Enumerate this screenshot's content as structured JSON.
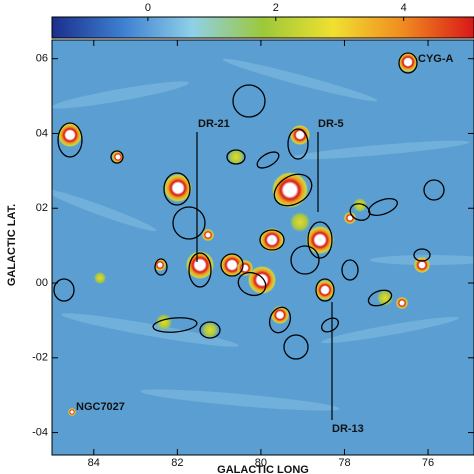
{
  "chart_data": {
    "type": "map",
    "xlabel": "GALACTIC LONG",
    "ylabel": "GALACTIC LAT.",
    "xlim": [
      85,
      74.9
    ],
    "xticks": [
      84,
      82,
      80,
      78,
      76
    ],
    "ylim": [
      -0.46,
      0.65
    ],
    "yticks": [
      {
        "value": 0.6,
        "label": "06"
      },
      {
        "value": 0.4,
        "label": "04"
      },
      {
        "value": 0.2,
        "label": "02"
      },
      {
        "value": 0.0,
        "label": "00"
      },
      {
        "value": -0.2,
        "label": "-02"
      },
      {
        "value": -0.4,
        "label": "-04"
      }
    ],
    "colorbar": {
      "lim": [
        -1.5,
        5.1
      ],
      "ticks": [
        0,
        2,
        4
      ],
      "colors": [
        "#1b2f8c",
        "#3d7fd0",
        "#8fd0e8",
        "#9cc83a",
        "#f0e030",
        "#f08a20",
        "#d81818"
      ]
    },
    "annotations": [
      "CYG-A",
      "DR-21",
      "DR-5",
      "NGC7027",
      "DR-13"
    ]
  }
}
